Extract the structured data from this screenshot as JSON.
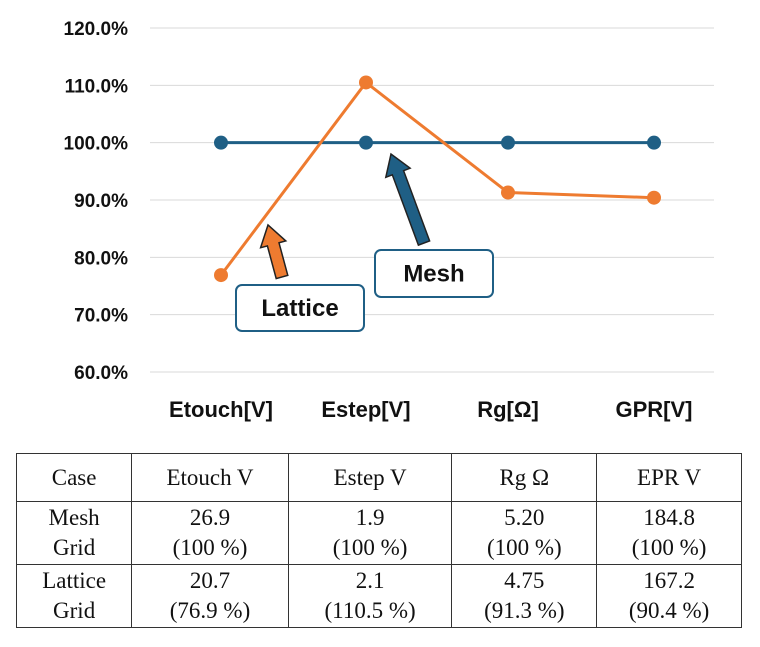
{
  "chart_data": {
    "type": "line",
    "categories": [
      "Etouch[V]",
      "Estep[V]",
      "Rg[Ω]",
      "GPR[V]"
    ],
    "series": [
      {
        "name": "Mesh",
        "values": [
          100.0,
          100.0,
          100.0,
          100.0
        ],
        "color": "#1f5f85"
      },
      {
        "name": "Lattice",
        "values": [
          76.9,
          110.5,
          91.3,
          90.4
        ],
        "color": "#ee7b30"
      }
    ],
    "y_ticks": [
      "60.0%",
      "70.0%",
      "80.0%",
      "90.0%",
      "100.0%",
      "110.0%",
      "120.0%"
    ],
    "ylim": [
      60,
      120
    ],
    "grid": true,
    "legend": "none",
    "callouts": [
      {
        "label": "Lattice",
        "series": "Lattice",
        "arrow_color": "#ee7b30"
      },
      {
        "label": "Mesh",
        "series": "Mesh",
        "arrow_color": "#1f5f85"
      }
    ]
  },
  "table": {
    "headers": [
      "Case",
      "Etouch V",
      "Estep V",
      "Rg Ω",
      "EPR V"
    ],
    "rows": [
      {
        "case": [
          "Mesh",
          "Grid"
        ],
        "cells": [
          [
            "26.9",
            "(100 %)"
          ],
          [
            "1.9",
            "(100 %)"
          ],
          [
            "5.20",
            "(100 %)"
          ],
          [
            "184.8",
            "(100 %)"
          ]
        ]
      },
      {
        "case": [
          "Lattice",
          "Grid"
        ],
        "cells": [
          [
            "20.7",
            "(76.9 %)"
          ],
          [
            "2.1",
            "(110.5 %)"
          ],
          [
            "4.75",
            "(91.3 %)"
          ],
          [
            "167.2",
            "(90.4 %)"
          ]
        ]
      }
    ]
  }
}
